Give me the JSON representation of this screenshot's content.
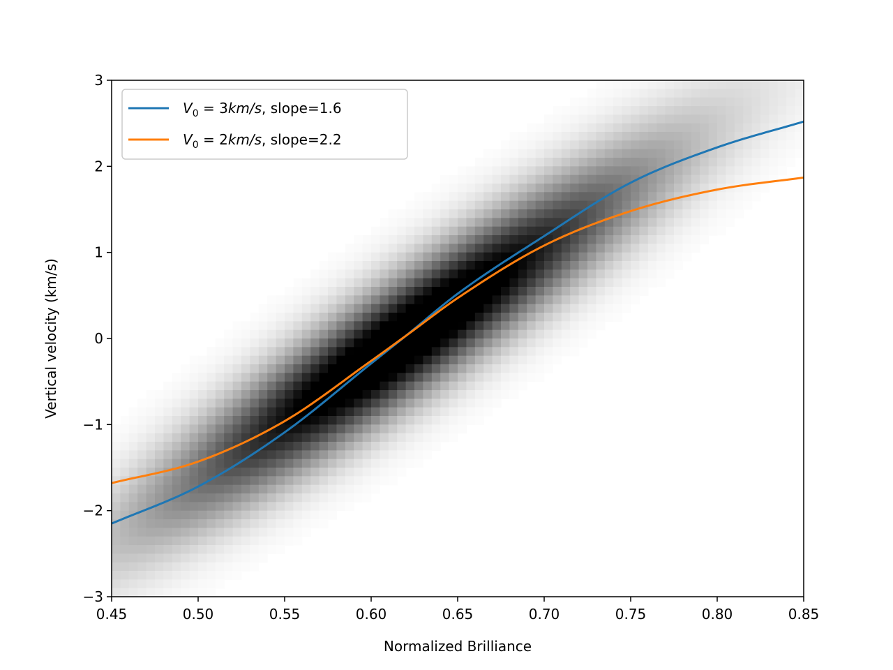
{
  "chart_data": {
    "type": "line",
    "title": "",
    "xlabel": "Normalized Brilliance",
    "ylabel": "Vertical velocity (km/s)",
    "xlim": [
      0.45,
      0.85
    ],
    "ylim": [
      -3,
      3
    ],
    "x_ticks": [
      0.45,
      0.5,
      0.55,
      0.6,
      0.65,
      0.7,
      0.75,
      0.8,
      0.85
    ],
    "x_tick_labels": [
      "0.45",
      "0.50",
      "0.55",
      "0.60",
      "0.65",
      "0.70",
      "0.75",
      "0.80",
      "0.85"
    ],
    "y_ticks": [
      -3,
      -2,
      -1,
      0,
      1,
      2,
      3
    ],
    "y_tick_labels": [
      "−3",
      "−2",
      "−1",
      "0",
      "1",
      "2",
      "3"
    ],
    "grid": false,
    "legend_position": "top-left",
    "background_density": {
      "type": "heatmap",
      "colormap": "greys",
      "center_x": 0.62,
      "center_y": 0.0,
      "trend_slope": 13.5,
      "spread_along_x": 0.095,
      "spread_perp_y": 0.5
    },
    "series": [
      {
        "name_parts": {
          "var": "V",
          "sub": "0",
          "eq": " = 3",
          "unit": "km/s",
          "rest": ", slope=1.6"
        },
        "color": "#1f77b4",
        "x": [
          0.45,
          0.5,
          0.55,
          0.6,
          0.62,
          0.65,
          0.7,
          0.75,
          0.8,
          0.85
        ],
        "y": [
          -2.15,
          -1.72,
          -1.09,
          -0.29,
          0.03,
          0.52,
          1.19,
          1.81,
          2.22,
          2.52
        ]
      },
      {
        "name_parts": {
          "var": "V",
          "sub": "0",
          "eq": " = 2",
          "unit": "km/s",
          "rest": ", slope=2.2"
        },
        "color": "#ff7f0e",
        "x": [
          0.45,
          0.5,
          0.55,
          0.6,
          0.62,
          0.65,
          0.7,
          0.75,
          0.8,
          0.85
        ],
        "y": [
          -1.68,
          -1.43,
          -0.96,
          -0.26,
          0.03,
          0.47,
          1.08,
          1.48,
          1.73,
          1.87
        ]
      }
    ]
  }
}
